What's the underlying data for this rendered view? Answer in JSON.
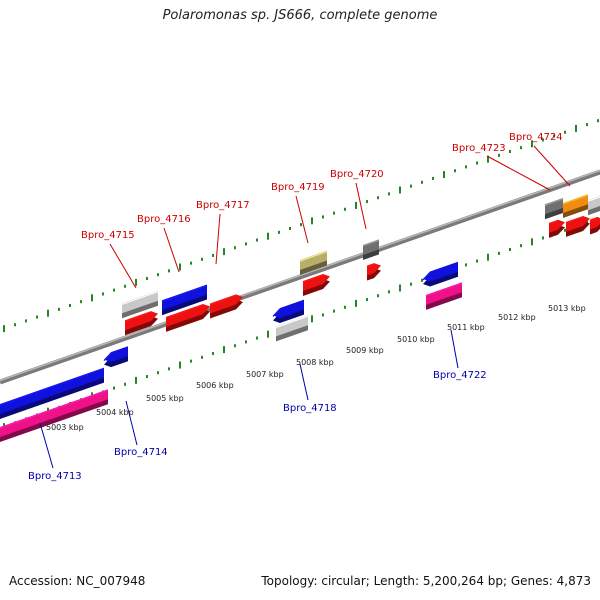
{
  "title": "Polaromonas sp. JS666, complete genome",
  "footer": {
    "accession": "Accession: NC_007948",
    "info": "Topology: circular; Length: 5,200,264 bp; Genes: 4,873"
  },
  "colors": {
    "forward_label": "#cc0000",
    "reverse_label": "#0000aa",
    "backbone": "#888888",
    "tick": "#228822"
  },
  "kbp_labels": [
    "5003 kbp",
    "5004 kbp",
    "5005 kbp",
    "5006 kbp",
    "5007 kbp",
    "5008 kbp",
    "5009 kbp",
    "5010 kbp",
    "5011 kbp",
    "5012 kbp",
    "5013 kbp"
  ],
  "gene_labels": [
    {
      "text": "Bpro_4713",
      "strand": "reverse"
    },
    {
      "text": "Bpro_4714",
      "strand": "reverse"
    },
    {
      "text": "Bpro_4715",
      "strand": "forward"
    },
    {
      "text": "Bpro_4716",
      "strand": "forward"
    },
    {
      "text": "Bpro_4717",
      "strand": "forward"
    },
    {
      "text": "Bpro_4718",
      "strand": "reverse"
    },
    {
      "text": "Bpro_4719",
      "strand": "forward"
    },
    {
      "text": "Bpro_4720",
      "strand": "forward"
    },
    {
      "text": "Bpro_4722",
      "strand": "reverse"
    },
    {
      "text": "Bpro_4723",
      "strand": "forward"
    },
    {
      "text": "Bpro_4724",
      "strand": "forward"
    }
  ],
  "feature_colors": {
    "red": "#ee1111",
    "blue": "#1111dd",
    "pink": "#ee1188",
    "gray": "#c8c8c8",
    "olive": "#b8ae6a",
    "darkgray": "#707070",
    "orange": "#f08c10"
  }
}
